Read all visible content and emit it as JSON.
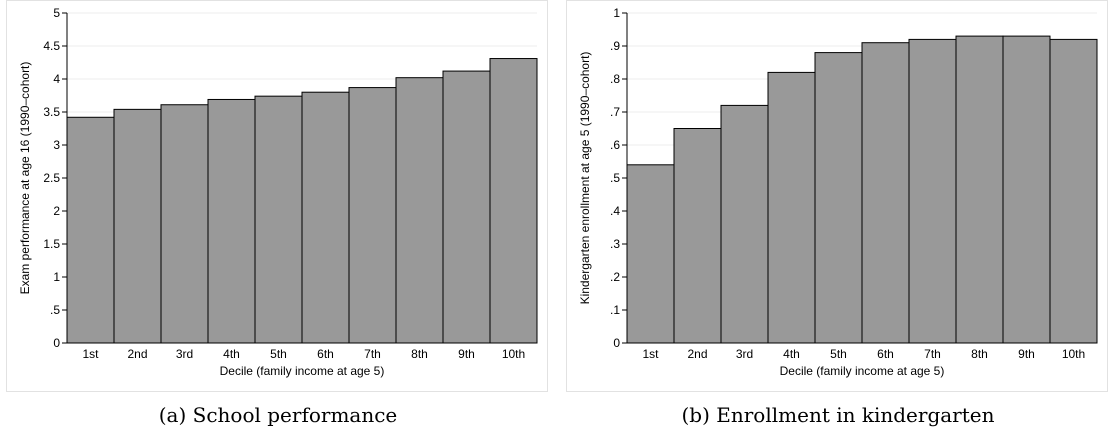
{
  "chart_data": [
    {
      "type": "bar",
      "categories": [
        "1st",
        "2nd",
        "3rd",
        "4th",
        "5th",
        "6th",
        "7th",
        "8th",
        "9th",
        "10th"
      ],
      "values": [
        3.42,
        3.54,
        3.61,
        3.69,
        3.74,
        3.8,
        3.87,
        4.02,
        4.12,
        4.31
      ],
      "xlabel": "Decile (family income at age 5)",
      "ylabel": "Exam performance at age 16 (1990–cohort)",
      "ylim": [
        0,
        5
      ],
      "yticks": [
        "0",
        ".5",
        "1",
        "1.5",
        "2",
        "2.5",
        "3",
        "3.5",
        "4",
        "4.5",
        "5"
      ],
      "ytick_values": [
        0,
        0.5,
        1,
        1.5,
        2,
        2.5,
        3,
        3.5,
        4,
        4.5,
        5
      ],
      "grid": true,
      "bar_color": "#999999",
      "caption": "(a) School performance"
    },
    {
      "type": "bar",
      "categories": [
        "1st",
        "2nd",
        "3rd",
        "4th",
        "5th",
        "6th",
        "7th",
        "8th",
        "9th",
        "10th"
      ],
      "values": [
        0.54,
        0.65,
        0.72,
        0.82,
        0.88,
        0.91,
        0.92,
        0.93,
        0.93,
        0.92
      ],
      "xlabel": "Decile (family income at age 5)",
      "ylabel": "Kindergarten enrollment at age 5 (1990–cohort)",
      "ylim": [
        0,
        1
      ],
      "yticks": [
        "0",
        ".1",
        ".2",
        ".3",
        ".4",
        ".5",
        ".6",
        ".7",
        ".8",
        ".9",
        "1"
      ],
      "ytick_values": [
        0,
        0.1,
        0.2,
        0.3,
        0.4,
        0.5,
        0.6,
        0.7,
        0.8,
        0.9,
        1
      ],
      "grid": true,
      "bar_color": "#999999",
      "caption": "(b) Enrollment in kindergarten"
    }
  ]
}
